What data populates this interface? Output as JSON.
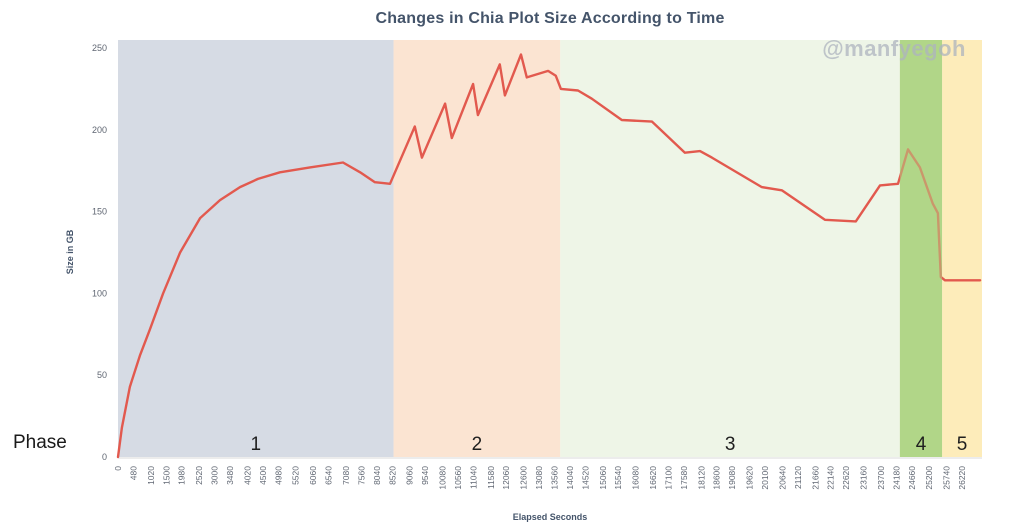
{
  "header": {
    "title": "Changes in Chia Plot Size According to Time"
  },
  "watermark": {
    "text": "@manfyegoh"
  },
  "phase_axis": {
    "label": "Phase"
  },
  "colors": {
    "title": "#44546a",
    "tick_label": "#5f6672",
    "axis_title": "#44546a",
    "line": "#e2594e",
    "axis_line": "#d9d9d9",
    "phase_band_label": "#1f1f1f"
  },
  "chart_data": {
    "type": "line",
    "title": "Changes in Chia Plot Size According to Time",
    "xlabel": "Elapsed Seconds",
    "ylabel": "Size in GB",
    "x_range": [
      0,
      26840
    ],
    "y_range": [
      0,
      250
    ],
    "grid": false,
    "legend": "none",
    "line_color": "#e2594e",
    "x_ticks": [
      0,
      480,
      1020,
      1500,
      1980,
      2520,
      3000,
      3480,
      4020,
      4500,
      4980,
      5520,
      6060,
      6540,
      7080,
      7560,
      8040,
      8520,
      9060,
      9540,
      10080,
      10560,
      11040,
      11580,
      12060,
      12600,
      13080,
      13560,
      14040,
      14520,
      15060,
      15540,
      16080,
      16620,
      17100,
      17580,
      18120,
      18600,
      19080,
      19620,
      20100,
      20640,
      21120,
      21660,
      22140,
      22620,
      23160,
      23700,
      24180,
      24660,
      25200,
      25740,
      26220
    ],
    "y_ticks": [
      0,
      50,
      100,
      150,
      200,
      250
    ],
    "phases": [
      {
        "label": "1",
        "start_s": 0,
        "end_s": 8560,
        "color": "#d6dbe4"
      },
      {
        "label": "2",
        "start_s": 8560,
        "end_s": 13740,
        "color": "#fbe4d2"
      },
      {
        "label": "3",
        "start_s": 13740,
        "end_s": 24290,
        "color": "#eef5e7"
      },
      {
        "label": "4",
        "start_s": 24290,
        "end_s": 25600,
        "color": "#b1d688"
      },
      {
        "label": "5",
        "start_s": 25600,
        "end_s": 26840,
        "color": "#fdecba"
      }
    ],
    "points": [
      [
        0,
        0
      ],
      [
        120,
        18
      ],
      [
        370,
        43
      ],
      [
        680,
        62
      ],
      [
        990,
        78
      ],
      [
        1400,
        100
      ],
      [
        1930,
        125
      ],
      [
        2550,
        146
      ],
      [
        3170,
        157
      ],
      [
        3790,
        165
      ],
      [
        4350,
        170
      ],
      [
        5030,
        174
      ],
      [
        5960,
        177
      ],
      [
        6990,
        180
      ],
      [
        7520,
        174
      ],
      [
        7980,
        168
      ],
      [
        8450,
        167
      ],
      [
        9220,
        202
      ],
      [
        9440,
        183
      ],
      [
        10160,
        216
      ],
      [
        10370,
        195
      ],
      [
        11030,
        228
      ],
      [
        11180,
        209
      ],
      [
        11860,
        240
      ],
      [
        12020,
        221
      ],
      [
        12520,
        246
      ],
      [
        12700,
        232
      ],
      [
        13360,
        236
      ],
      [
        13600,
        233
      ],
      [
        13760,
        225
      ],
      [
        14290,
        224
      ],
      [
        14720,
        219
      ],
      [
        15650,
        206
      ],
      [
        16590,
        205
      ],
      [
        17610,
        186
      ],
      [
        18080,
        187
      ],
      [
        18450,
        183
      ],
      [
        20000,
        165
      ],
      [
        20620,
        163
      ],
      [
        21960,
        145
      ],
      [
        22920,
        144
      ],
      [
        23670,
        166
      ],
      [
        24230,
        167
      ],
      [
        24540,
        188
      ],
      [
        24910,
        177
      ],
      [
        25310,
        155
      ],
      [
        25470,
        149
      ],
      [
        25560,
        110
      ],
      [
        25690,
        108
      ],
      [
        26780,
        108
      ]
    ]
  }
}
